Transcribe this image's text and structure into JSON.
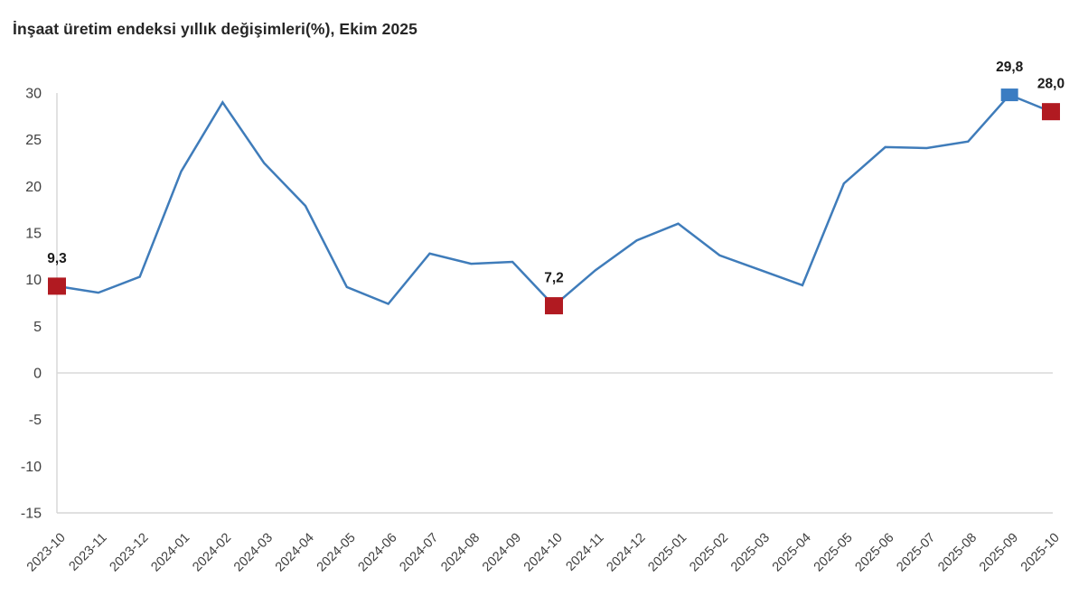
{
  "title": "İnşaat üretim endeksi yıllık değişimleri(%), Ekim 2025",
  "colors": {
    "line": "#3f7cba",
    "marker_red": "#b11a21",
    "marker_blue": "#3a7cc2",
    "axis_line": "#d5d5d5",
    "zero_line": "#d9d9d9",
    "tick_text": "#404040",
    "point_label_text": "#1a1a1a",
    "title_text": "#262626"
  },
  "chart_data": {
    "type": "line",
    "title": "İnşaat üretim endeksi yıllık değişimleri(%), Ekim 2025",
    "categories": [
      "2023-10",
      "2023-11",
      "2023-12",
      "2024-01",
      "2024-02",
      "2024-03",
      "2024-04",
      "2024-05",
      "2024-06",
      "2024-07",
      "2024-08",
      "2024-09",
      "2024-10",
      "2024-11",
      "2024-12",
      "2025-01",
      "2025-02",
      "2025-03",
      "2025-04",
      "2025-05",
      "2025-06",
      "2025-07",
      "2025-08",
      "2025-09",
      "2025-10"
    ],
    "values": [
      9.3,
      8.6,
      10.3,
      21.6,
      29.0,
      22.5,
      17.9,
      9.2,
      7.4,
      12.8,
      11.7,
      11.9,
      7.2,
      11.0,
      14.2,
      16.0,
      12.6,
      11.0,
      9.4,
      20.3,
      24.2,
      24.1,
      24.8,
      29.8,
      28.0
    ],
    "xlabel": "",
    "ylabel": "",
    "ylim": [
      -15,
      30
    ],
    "yticks": [
      30,
      25,
      20,
      15,
      10,
      5,
      0,
      -5,
      -10,
      -15
    ],
    "grid": "zero line and bottom axis only",
    "legend": "none",
    "highlighted_points": [
      {
        "category": "2023-10",
        "value": 9.3,
        "label": "9,3",
        "marker": "red-square"
      },
      {
        "category": "2024-10",
        "value": 7.2,
        "label": "7,2",
        "marker": "red-square"
      },
      {
        "category": "2025-09",
        "value": 29.8,
        "label": "29,8",
        "marker": "blue-square"
      },
      {
        "category": "2025-10",
        "value": 28.0,
        "label": "28,0",
        "marker": "red-square"
      }
    ]
  }
}
